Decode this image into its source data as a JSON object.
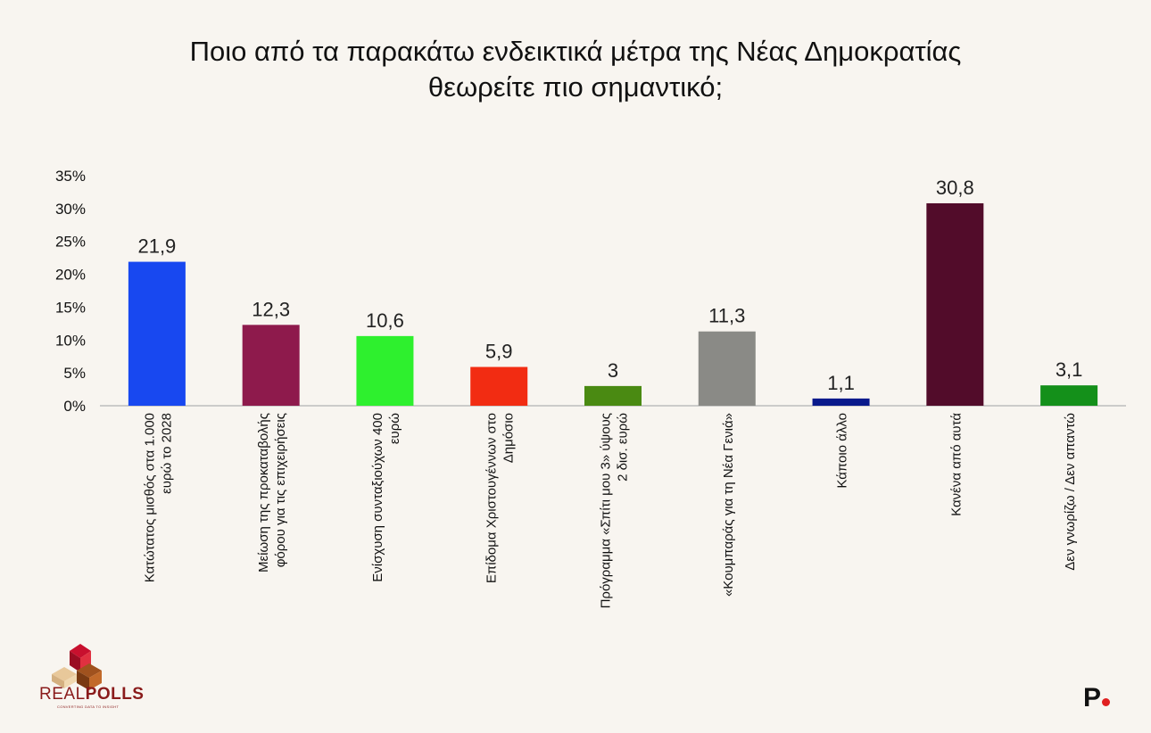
{
  "title_line1": "Ποιο από τα παρακάτω ενδεικτικά μέτρα της Νέας Δημοκρατίας",
  "title_line2": "θεωρείτε πιο σημαντικό;",
  "brand": {
    "logo_real": "REAL",
    "logo_polls": "POLLS",
    "logo_tagline": "CONVERTING DATA TO INSIGHT",
    "publisher_mark": "P"
  },
  "chart_data": {
    "type": "bar",
    "title": "Ποιο από τα παρακάτω ενδεικτικά μέτρα της Νέας Δημοκρατίας θεωρείτε πιο σημαντικό;",
    "ylim": [
      0,
      35
    ],
    "yticks": [
      0,
      5,
      10,
      15,
      20,
      25,
      30,
      35
    ],
    "ytick_labels": [
      "0%",
      "5%",
      "10%",
      "15%",
      "20%",
      "25%",
      "30%",
      "35%"
    ],
    "grid": false,
    "categories": [
      [
        "Κατώτατος μισθός στα 1.000",
        "ευρώ το 2028"
      ],
      [
        "Μείωση της προκαταβολής",
        "φόρου για τις επιχειρήσεις"
      ],
      [
        "Ενίσχυση συνταξιούχων 400",
        "ευρώ"
      ],
      [
        "Επίδομα Χριστουγέννων στο",
        "Δημόσιο"
      ],
      [
        "Πρόγραμμα «Σπίτι μου 3» ύψους",
        "2 δισ. ευρώ"
      ],
      [
        "«Κουμπαράς για τη Νέα Γενιά»"
      ],
      [
        "Κάποιο άλλο"
      ],
      [
        "Κανένα από αυτά"
      ],
      [
        "Δεν γνωρίζω / Δεν απαντώ"
      ]
    ],
    "values": [
      21.9,
      12.3,
      10.6,
      5.9,
      3,
      11.3,
      1.1,
      30.8,
      3.1
    ],
    "value_labels": [
      "21,9",
      "12,3",
      "10,6",
      "5,9",
      "3",
      "11,3",
      "1,1",
      "30,8",
      "3,1"
    ],
    "colors": [
      "#1848f0",
      "#8e1a4c",
      "#2ef02e",
      "#f22c12",
      "#4a8a12",
      "#8a8a86",
      "#0a1a8c",
      "#520c2a",
      "#14901a"
    ]
  }
}
